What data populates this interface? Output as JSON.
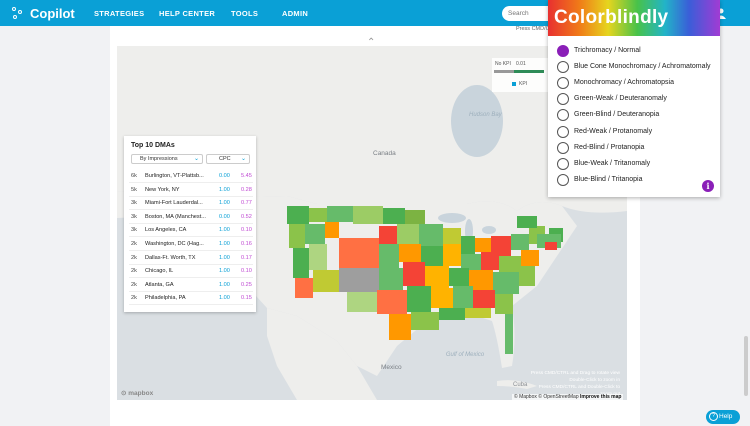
{
  "header": {
    "logo": "Copilot",
    "nav": [
      "STRATEGIES",
      "HELP CENTER",
      "TOOLS",
      "ADMIN"
    ],
    "search_placeholder": "Search"
  },
  "map": {
    "press_top": "Press CMD/CT",
    "legend": {
      "no_kpi": "No KPI",
      "value": "0.01",
      "kpi": "KPI"
    },
    "places": {
      "canada": "Canada",
      "hudson_bay": "Hudson Bay",
      "mexico": "Mexico",
      "cuba": "Cuba",
      "gulf": "Gulf of Mexico"
    },
    "press_hint": "Press CMD/CTRL and Drag to rotate view\nDouble-Click to zoom in\nPress CMD/CTRL and Double-Click to zoom out",
    "attribution_prefix": "© Mapbox © OpenStreetMap",
    "attribution_link": "Improve this map",
    "mapbox_logo": "mapbox"
  },
  "dma": {
    "title": "Top 10 DMAs",
    "sort_select": "By Impressions",
    "metric_select": "CPC",
    "rows": [
      {
        "imp": "6k",
        "name": "Burlington, VT-Plattsb...",
        "v1": "0.00",
        "v2": "5.45"
      },
      {
        "imp": "5k",
        "name": "New York, NY",
        "v1": "1.00",
        "v2": "0.28"
      },
      {
        "imp": "3k",
        "name": "Miami-Fort Lauderdal...",
        "v1": "1.00",
        "v2": "0.77"
      },
      {
        "imp": "3k",
        "name": "Boston, MA (Manchest...",
        "v1": "0.00",
        "v2": "0.52"
      },
      {
        "imp": "3k",
        "name": "Los Angeles, CA",
        "v1": "1.00",
        "v2": "0.10"
      },
      {
        "imp": "2k",
        "name": "Washington, DC (Hag...",
        "v1": "1.00",
        "v2": "0.16"
      },
      {
        "imp": "2k",
        "name": "Dallas-Ft. Worth, TX",
        "v1": "1.00",
        "v2": "0.17"
      },
      {
        "imp": "2k",
        "name": "Chicago, IL",
        "v1": "1.00",
        "v2": "0.10"
      },
      {
        "imp": "2k",
        "name": "Atlanta, GA",
        "v1": "1.00",
        "v2": "0.25"
      },
      {
        "imp": "2k",
        "name": "Philadelphia, PA",
        "v1": "1.00",
        "v2": "0.15"
      }
    ]
  },
  "colorblindly": {
    "title": "Colorblindly",
    "selected": 0,
    "options": [
      "Trichromacy / Normal",
      "Blue Cone Monochromacy / Achromatomaly",
      "Monochromacy / Achromatopsia",
      "Green-Weak / Deuteranomaly",
      "Green-Blind / Deuteranopia",
      "Red-Weak / Protanomaly",
      "Red-Blind / Protanopia",
      "Blue-Weak / Tritanomaly",
      "Blue-Blind / Tritanopia"
    ]
  },
  "help_label": "Help",
  "colors": {
    "brand": "#0aa0d6",
    "accent": "#8a1fb8"
  }
}
